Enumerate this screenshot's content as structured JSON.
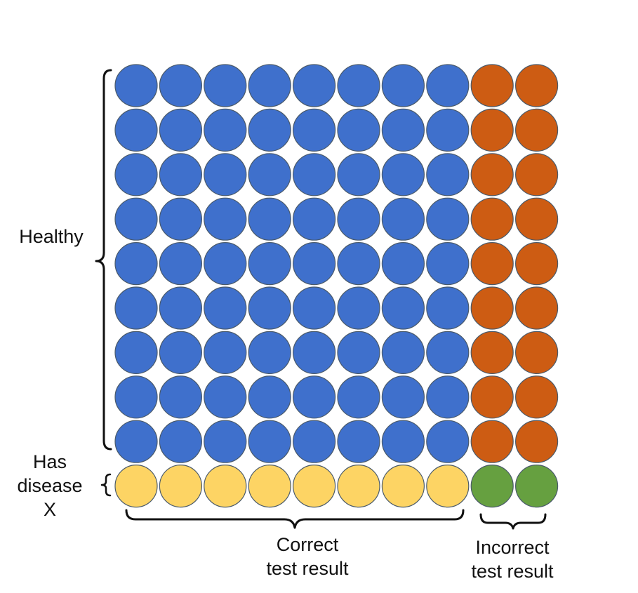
{
  "labels": {
    "healthy": "Healthy",
    "has_disease": [
      "Has",
      "disease",
      "X"
    ],
    "correct": [
      "Correct",
      "test result"
    ],
    "incorrect": [
      "Incorrect",
      "test result"
    ]
  },
  "grid": {
    "columns": 10,
    "rows": [
      {
        "group": "healthy",
        "correct": 8,
        "incorrect": 2
      },
      {
        "group": "healthy",
        "correct": 8,
        "incorrect": 2
      },
      {
        "group": "healthy",
        "correct": 8,
        "incorrect": 2
      },
      {
        "group": "healthy",
        "correct": 8,
        "incorrect": 2
      },
      {
        "group": "healthy",
        "correct": 8,
        "incorrect": 2
      },
      {
        "group": "healthy",
        "correct": 8,
        "incorrect": 2
      },
      {
        "group": "healthy",
        "correct": 8,
        "incorrect": 2
      },
      {
        "group": "healthy",
        "correct": 8,
        "incorrect": 2
      },
      {
        "group": "healthy",
        "correct": 8,
        "incorrect": 2
      },
      {
        "group": "has_disease",
        "correct": 8,
        "incorrect": 2
      }
    ]
  },
  "colors": {
    "healthy_correct": "#3f70cc",
    "healthy_incorrect": "#cd5c13",
    "disease_correct": "#fdd464",
    "disease_incorrect": "#66a040",
    "outline": "#4a5a6a",
    "brace": "#111111"
  }
}
